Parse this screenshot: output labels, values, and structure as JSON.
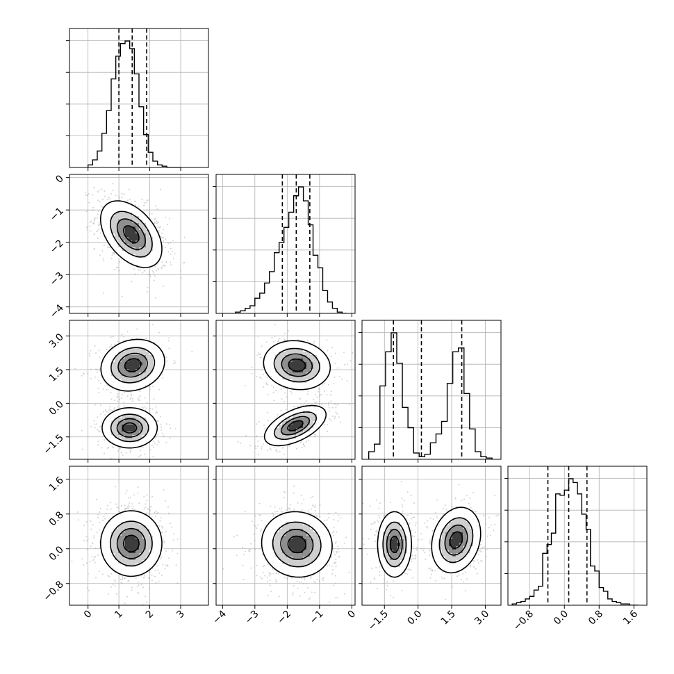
{
  "chart_data": {
    "type": "corner",
    "parameters": [
      {
        "index": 0,
        "range": [
          -0.6,
          3.9
        ],
        "ticks": [
          0,
          1,
          2,
          3
        ],
        "tick_labels": [
          "0",
          "1",
          "2",
          "3"
        ],
        "quantiles": [
          1.0,
          1.43,
          1.9
        ],
        "hist": {
          "edges": [
            -0.0,
            0.15,
            0.3,
            0.45,
            0.6,
            0.75,
            0.9,
            1.05,
            1.2,
            1.35,
            1.5,
            1.65,
            1.8,
            1.95,
            2.1,
            2.25,
            2.4,
            2.55,
            2.7,
            2.85,
            3.0
          ],
          "counts": [
            0.02,
            0.06,
            0.13,
            0.27,
            0.45,
            0.7,
            0.88,
            0.98,
            1.0,
            0.94,
            0.74,
            0.48,
            0.26,
            0.12,
            0.05,
            0.02,
            0.01,
            0.0,
            0.0,
            0.0
          ]
        }
      },
      {
        "index": 1,
        "range": [
          -4.2,
          0.1
        ],
        "ticks": [
          -4,
          -3,
          -2,
          -1,
          0
        ],
        "tick_labels": [
          "−4",
          "−3",
          "−2",
          "−1",
          "0"
        ],
        "quantiles": [
          -2.15,
          -1.72,
          -1.3
        ],
        "hist": {
          "edges": [
            -3.6,
            -3.45,
            -3.3,
            -3.15,
            -3.0,
            -2.85,
            -2.7,
            -2.55,
            -2.4,
            -2.25,
            -2.1,
            -1.95,
            -1.8,
            -1.65,
            -1.5,
            -1.35,
            -1.2,
            -1.05,
            -0.9,
            -0.75,
            -0.6,
            -0.45,
            -0.3,
            -0.15
          ],
          "counts": [
            0.01,
            0.02,
            0.04,
            0.06,
            0.12,
            0.16,
            0.24,
            0.33,
            0.48,
            0.56,
            0.68,
            0.8,
            0.93,
            1.0,
            0.89,
            0.7,
            0.46,
            0.36,
            0.18,
            0.09,
            0.04,
            0.01,
            0.0
          ]
        }
      },
      {
        "index": 2,
        "range": [
          -2.5,
          3.7
        ],
        "ticks": [
          -1.5,
          0.0,
          1.5,
          3.0
        ],
        "tick_labels": [
          "−1.5",
          "0.0",
          "1.5",
          "3.0"
        ],
        "quantiles": [
          -1.1,
          0.15,
          1.95
        ],
        "hist": {
          "edges": [
            -2.2,
            -1.95,
            -1.7,
            -1.45,
            -1.2,
            -0.95,
            -0.7,
            -0.45,
            -0.2,
            0.05,
            0.3,
            0.55,
            0.8,
            1.05,
            1.3,
            1.55,
            1.8,
            2.05,
            2.3,
            2.55,
            2.8,
            3.05,
            3.3
          ],
          "counts": [
            0.06,
            0.12,
            0.58,
            0.85,
            1.0,
            0.76,
            0.41,
            0.25,
            0.05,
            0.02,
            0.04,
            0.13,
            0.2,
            0.3,
            0.6,
            0.85,
            0.88,
            0.52,
            0.24,
            0.06,
            0.02,
            0.01
          ]
        }
      },
      {
        "index": 3,
        "range": [
          -1.3,
          1.9
        ],
        "ticks": [
          -0.8,
          0.0,
          0.8,
          1.6
        ],
        "tick_labels": [
          "−0.8",
          "0.0",
          "0.8",
          "1.6"
        ],
        "quantiles": [
          -0.38,
          0.1,
          0.52
        ],
        "hist": {
          "edges": [
            -1.2,
            -1.1,
            -1.0,
            -0.9,
            -0.8,
            -0.7,
            -0.6,
            -0.5,
            -0.4,
            -0.3,
            -0.2,
            -0.1,
            0.0,
            0.1,
            0.2,
            0.3,
            0.4,
            0.5,
            0.6,
            0.7,
            0.8,
            0.9,
            1.0,
            1.1,
            1.2,
            1.3,
            1.4,
            1.5,
            1.6,
            1.7
          ],
          "counts": [
            0.01,
            0.02,
            0.03,
            0.05,
            0.07,
            0.12,
            0.15,
            0.41,
            0.48,
            0.57,
            0.88,
            0.87,
            0.91,
            1.0,
            0.97,
            0.88,
            0.72,
            0.6,
            0.31,
            0.27,
            0.14,
            0.11,
            0.05,
            0.03,
            0.02,
            0.01,
            0.01,
            0.0,
            0.0
          ]
        }
      }
    ],
    "contour_levels": 4,
    "grid": true,
    "style": {
      "line_color": "#000000",
      "grid_color": "#b0b0b0",
      "point_color": "#9a9a9a",
      "density_dark": "#2b2b2b"
    },
    "panels_2d": [
      {
        "x": 0,
        "y": 1,
        "blobs": [
          {
            "cx": 1.4,
            "cy": -1.75,
            "sx": 0.5,
            "sy": 0.52,
            "rho": -0.45,
            "weight": 1.0
          }
        ]
      },
      {
        "x": 0,
        "y": 2,
        "blobs": [
          {
            "cx": 1.45,
            "cy": 1.7,
            "sx": 0.52,
            "sy": 0.58,
            "rho": 0.15,
            "weight": 0.5
          },
          {
            "cx": 1.35,
            "cy": -1.1,
            "sx": 0.45,
            "sy": 0.45,
            "rho": 0.0,
            "weight": 0.5
          }
        ]
      },
      {
        "x": 1,
        "y": 2,
        "blobs": [
          {
            "cx": -1.7,
            "cy": 1.7,
            "sx": 0.52,
            "sy": 0.55,
            "rho": -0.1,
            "weight": 0.5
          },
          {
            "cx": -1.75,
            "cy": -1.0,
            "sx": 0.48,
            "sy": 0.45,
            "rho": 0.55,
            "weight": 0.5
          }
        ]
      },
      {
        "x": 0,
        "y": 3,
        "blobs": [
          {
            "cx": 1.4,
            "cy": 0.12,
            "sx": 0.5,
            "sy": 0.38,
            "rho": 0.0,
            "weight": 1.0
          }
        ]
      },
      {
        "x": 1,
        "y": 3,
        "blobs": [
          {
            "cx": -1.7,
            "cy": 0.1,
            "sx": 0.55,
            "sy": 0.38,
            "rho": -0.05,
            "weight": 1.0
          }
        ]
      },
      {
        "x": 2,
        "y": 3,
        "blobs": [
          {
            "cx": -1.05,
            "cy": 0.1,
            "sx": 0.38,
            "sy": 0.38,
            "rho": 0.0,
            "weight": 0.5
          },
          {
            "cx": 1.7,
            "cy": 0.2,
            "sx": 0.55,
            "sy": 0.38,
            "rho": 0.2,
            "weight": 0.5
          }
        ]
      }
    ]
  }
}
